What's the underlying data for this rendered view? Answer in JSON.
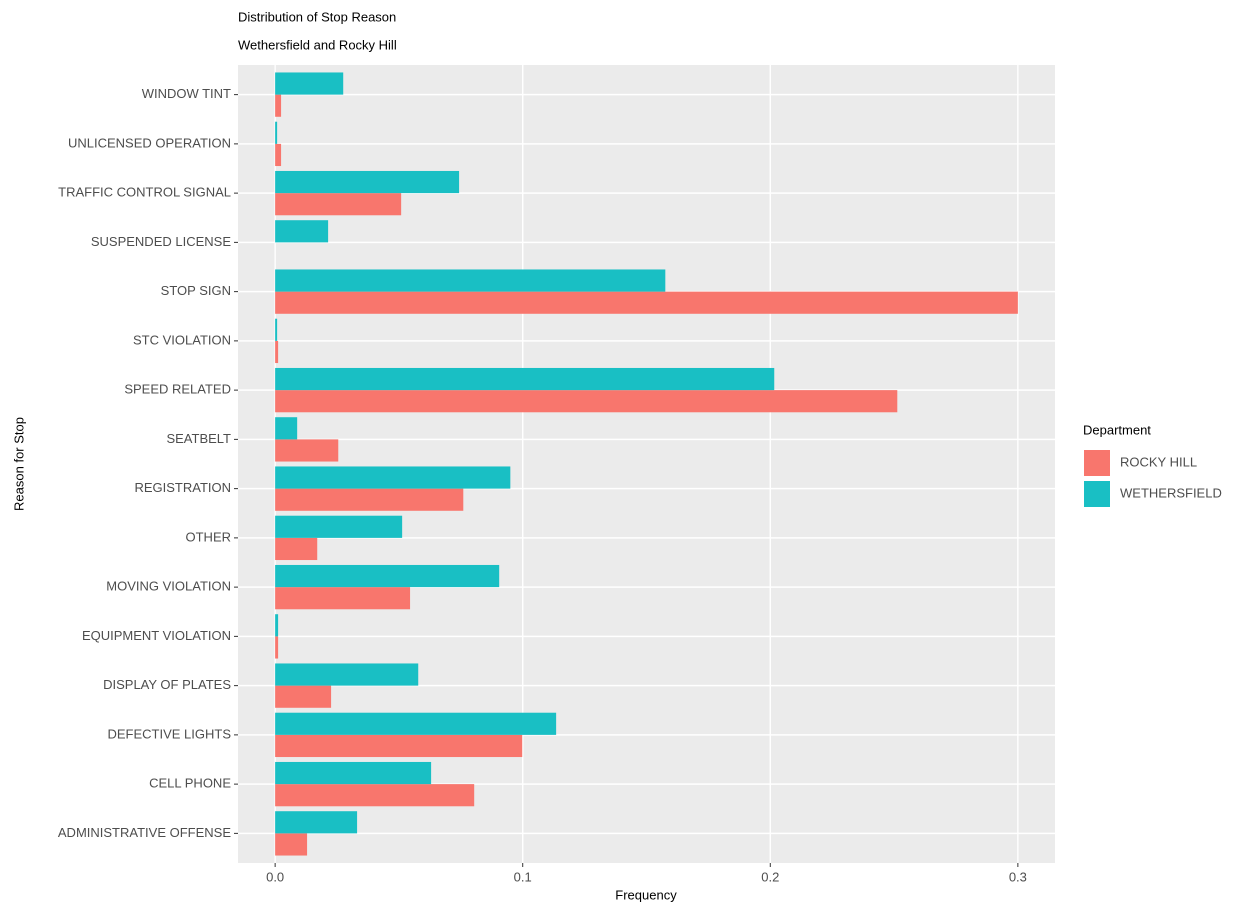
{
  "chart_data": {
    "type": "bar",
    "orientation": "horizontal",
    "title": "Distribution of Stop Reason",
    "subtitle": "Wethersfield and Rocky Hill",
    "x_label": "Frequency",
    "y_label": "Reason for Stop",
    "legend_title": "Department",
    "legend_position": "right",
    "grid": true,
    "categories": [
      "WINDOW TINT",
      "UNLICENSED OPERATION",
      "TRAFFIC CONTROL SIGNAL",
      "SUSPENDED LICENSE",
      "STOP SIGN",
      "STC VIOLATION",
      "SPEED RELATED",
      "SEATBELT",
      "REGISTRATION",
      "OTHER",
      "MOVING VIOLATION",
      "EQUIPMENT VIOLATION",
      "DISPLAY OF PLATES",
      "DEFECTIVE LIGHTS",
      "CELL PHONE",
      "ADMINISTRATIVE OFFENSE"
    ],
    "series": [
      {
        "name": "ROCKY HILL",
        "color": "#f8766d",
        "values": [
          0.0024,
          0.0024,
          0.0509,
          null,
          0.3,
          0.0012,
          0.2513,
          0.0255,
          0.076,
          0.017,
          0.0545,
          0.0012,
          0.0226,
          0.0998,
          0.0804,
          0.0129
        ]
      },
      {
        "name": "WETHERSFIELD",
        "color": "#19bfc4",
        "values": [
          0.0275,
          0.0008,
          0.0743,
          0.0214,
          0.1576,
          0.0008,
          0.2016,
          0.0089,
          0.095,
          0.0513,
          0.0905,
          0.0012,
          0.0578,
          0.1135,
          0.063,
          0.0331
        ]
      }
    ],
    "xlim": [
      -0.015,
      0.315
    ],
    "xticks": [
      {
        "value": 0,
        "label": "0.0"
      },
      0.1,
      0.2,
      0.3
    ]
  }
}
